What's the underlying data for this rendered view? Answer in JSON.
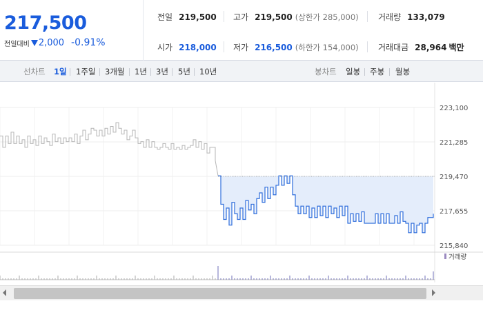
{
  "summary": {
    "price": "217,500",
    "change_label": "전일대비",
    "change_value": "2,000",
    "change_pct": "-0.91%",
    "stats": {
      "prev_close": {
        "label": "전일",
        "value": "219,500"
      },
      "open": {
        "label": "시가",
        "value": "218,000"
      },
      "high": {
        "label": "고가",
        "value": "219,500",
        "note": "(상한가 285,000)"
      },
      "low": {
        "label": "저가",
        "value": "216,500",
        "note": "(하한가 154,000)"
      },
      "volume": {
        "label": "거래량",
        "value": "133,079"
      },
      "trade_amount": {
        "label": "거래대금",
        "value": "28,964",
        "unit": "백만"
      }
    }
  },
  "toolbar": {
    "line_chart_label": "선차트",
    "periods": [
      "1일",
      "1주일",
      "3개월",
      "1년",
      "3년",
      "5년",
      "10년"
    ],
    "active_period": "1일",
    "candle_chart_label": "봉차트",
    "candle_periods": [
      "일봉",
      "주봉",
      "월봉"
    ]
  },
  "colors": {
    "up_blue": "#1a5cdc",
    "line_today": "#2e6ddb",
    "line_prev": "#b5b5b5",
    "fill_today": "#e4edfb"
  },
  "chart_data": {
    "type": "line",
    "title": "",
    "ylim": [
      215840,
      223100
    ],
    "y_ticks": [
      "223,100",
      "221,285",
      "219,470",
      "217,655",
      "215,840"
    ],
    "reference_line": 219470,
    "grid": true,
    "volume_legend": "거래량",
    "series": [
      {
        "x": [
          0,
          4,
          8,
          12,
          16,
          20,
          24,
          28,
          32,
          36,
          40,
          44,
          48,
          52,
          56,
          60,
          64,
          68,
          72,
          76,
          80,
          84,
          88,
          92,
          96,
          100,
          104,
          108,
          112,
          116,
          120,
          124,
          128,
          132,
          136,
          140,
          144,
          148,
          152,
          156,
          160,
          164,
          168,
          172,
          176,
          180,
          184,
          188,
          192,
          196,
          200,
          204,
          208,
          212,
          216,
          220,
          224,
          228,
          232,
          236,
          240,
          244,
          248,
          252,
          256,
          260,
          264,
          268,
          272,
          276,
          280,
          284,
          288,
          292,
          296,
          300,
          304,
          308,
          312
        ],
        "values": [
          221600,
          221000,
          221600,
          221200,
          221800,
          221200,
          221600,
          221200,
          221400,
          221000,
          221600,
          221200,
          221400,
          221100,
          221600,
          221200,
          221500,
          221300,
          221100,
          221700,
          221300,
          221500,
          221200,
          221500,
          221300,
          221500,
          221300,
          221700,
          221200,
          221600,
          221900,
          221400,
          221700,
          222000,
          221900,
          221600,
          221900,
          221600,
          222000,
          221700,
          222100,
          221800,
          222300,
          222000,
          221700,
          221900,
          221400,
          221600,
          221900,
          221500,
          221200,
          221300,
          221000,
          221400,
          221000,
          221300,
          221000,
          220900,
          221000,
          221200,
          221000,
          220900,
          221200,
          220900,
          221000,
          220900,
          221100,
          220900,
          221000,
          221100,
          221400,
          221000,
          221300,
          220900,
          221200,
          220700,
          221000,
          221000,
          220300
        ]
      },
      {
        "x": [
          316,
          320,
          324,
          328,
          332,
          336,
          340,
          344,
          348,
          352,
          356,
          360,
          364,
          368,
          372,
          376,
          380,
          384,
          388,
          392,
          396,
          400,
          404,
          408,
          412,
          416,
          420,
          424,
          428,
          432,
          436,
          440,
          444,
          448,
          452,
          456,
          460,
          464,
          468,
          472,
          476,
          480,
          484,
          488,
          492,
          496,
          500,
          504,
          508,
          512,
          516,
          520,
          524,
          528,
          532,
          536,
          540,
          544,
          548,
          552,
          556,
          560,
          564,
          568,
          572,
          576,
          580,
          584,
          588,
          592,
          596,
          600,
          604,
          608,
          612,
          616,
          620,
          624,
          628
        ],
        "values": [
          219500,
          218000,
          217200,
          217800,
          216900,
          218100,
          217500,
          217200,
          217800,
          217200,
          218200,
          217700,
          218000,
          217500,
          218300,
          218600,
          218100,
          218900,
          218300,
          218900,
          218500,
          219000,
          219500,
          219000,
          219500,
          219100,
          219500,
          218500,
          217900,
          217500,
          217900,
          217500,
          217900,
          217300,
          217800,
          217300,
          217900,
          217400,
          217900,
          217300,
          217900,
          217500,
          217800,
          217300,
          217900,
          217400,
          217900,
          217000,
          217500,
          217100,
          217500,
          217100,
          217600,
          217000,
          217000,
          217000,
          217000,
          217500,
          217000,
          217500,
          217000,
          217500,
          217000,
          217000,
          217400,
          217000,
          217600,
          217100,
          217000,
          216500,
          217000,
          216500,
          216900,
          217000,
          216500,
          217000,
          217300,
          217300,
          217500
        ]
      }
    ]
  }
}
